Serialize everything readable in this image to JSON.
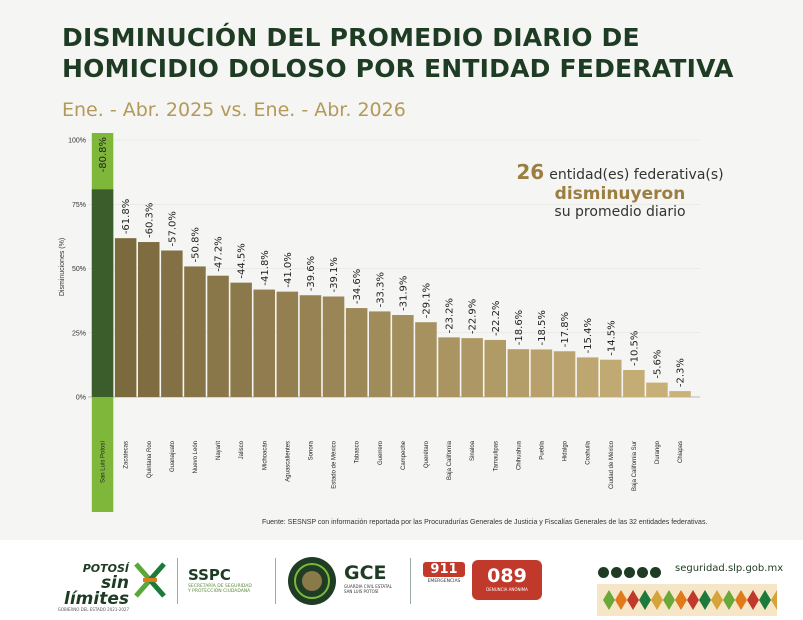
{
  "title_line1": "DISMINUCIÓN DEL PROMEDIO DIARIO DE",
  "title_line2": "HOMICIDIO DOLOSO POR ENTIDAD FEDERATIVA",
  "subtitle": "Ene. - Abr. 2025 vs. Ene. - Abr. 2026",
  "callout": {
    "count": "26",
    "line1": "entidad(es) federativa(s)",
    "line2": "disminuyeron",
    "line3": "su promedio diario"
  },
  "source": "Fuente: SESNSP con información reportada por las Procuradurías Generales de Justicia y Fiscalías Generales de las 32 entidades federativas.",
  "colors": {
    "highlight": "#3b5d2b",
    "highlight_band": "#7fb73a",
    "bar_dark": "#7c6a3f",
    "bar_light": "#c9b078",
    "title": "#1e3b23",
    "accent": "#9b7e40"
  },
  "chart_data": {
    "type": "bar",
    "ylabel": "Disminuciones (%)",
    "yticks": [
      "100%",
      "75%",
      "50%",
      "25%",
      "0%"
    ],
    "ylim": [
      0,
      100
    ],
    "categories": [
      "San Luis Potosí",
      "Zacatecas",
      "Quintana Roo",
      "Guanajuato",
      "Nuevo León",
      "Nayarit",
      "Jalisco",
      "Michoacán",
      "Aguascalientes",
      "Sonora",
      "Estado de México",
      "Tabasco",
      "Guerrero",
      "Campeche",
      "Querétaro",
      "Baja California",
      "Sinaloa",
      "Tamaulipas",
      "Chihuahua",
      "Puebla",
      "Hidalgo",
      "Coahuila",
      "Ciudad de México",
      "Baja California Sur",
      "Durango",
      "Chiapas"
    ],
    "values": [
      80.8,
      61.8,
      60.3,
      57.0,
      50.8,
      47.2,
      44.5,
      41.8,
      41.0,
      39.6,
      39.1,
      34.6,
      33.3,
      31.9,
      29.1,
      23.2,
      22.9,
      22.2,
      18.6,
      18.5,
      17.8,
      15.4,
      14.5,
      10.5,
      5.6,
      2.3
    ],
    "labels": [
      "-80.8%",
      "-61.8%",
      "-60.3%",
      "-57.0%",
      "-50.8%",
      "-47.2%",
      "-44.5%",
      "-41.8%",
      "-41.0%",
      "-39.6%",
      "-39.1%",
      "-34.6%",
      "-33.3%",
      "-31.9%",
      "-29.1%",
      "-23.2%",
      "-22.9%",
      "-22.2%",
      "-18.6%",
      "-18.5%",
      "-17.8%",
      "-15.4%",
      "-14.5%",
      "-10.5%",
      "-5.6%",
      "-2.3%"
    ],
    "highlighted": "San Luis Potosí"
  },
  "footer": {
    "potosi_top": "POTOSÍ",
    "potosi_main": "sin límites",
    "potosi_sub": "GOBIERNO DEL ESTADO 2021-2027",
    "sspc": "SSPC",
    "sspc_sub1": "SECRETARÍA DE SEGURIDAD",
    "sspc_sub2": "Y PROTECCIÓN CIUDADANA",
    "gce": "GCE",
    "gce_sub1": "GUARDIA CIVIL ESTATAL",
    "gce_sub2": "SAN LUIS POTOSÍ",
    "n911": "911",
    "n911_sub": "EMERGENCIAS",
    "n089": "089",
    "n089_sub": "DENUNCIA ANÓNIMA",
    "website": "seguridad.slp.gob.mx"
  }
}
